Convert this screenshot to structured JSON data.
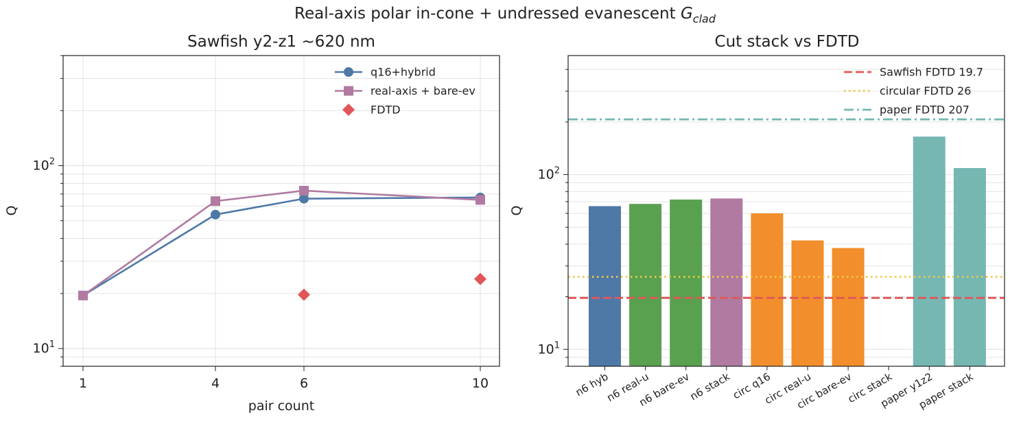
{
  "suptitle": {
    "main": "Real-axis polar in-cone + undressed evanescent ",
    "sym": "G",
    "sub": "clad"
  },
  "chart_data": [
    {
      "type": "line",
      "title": "Sawfish y2-z1 ~620 nm",
      "xlabel": "pair count",
      "ylabel": "Q",
      "yscale": "log",
      "ylim": [
        8,
        400
      ],
      "xlim": [
        0.0,
        10.7
      ],
      "xscale": "pair-count (1, 4, 6, 10 tick positions)",
      "xticks": [
        "1",
        "4",
        "6",
        "10"
      ],
      "yticks": [
        {
          "base": "10",
          "exp": "1"
        },
        {
          "base": "10",
          "exp": "2"
        }
      ],
      "grid": true,
      "legend_position": "top-right",
      "series": [
        {
          "name": "q16+hybrid",
          "color": "#4e79a7",
          "marker": "circle",
          "line": true,
          "points": [
            [
              1,
              19.5
            ],
            [
              4,
              54
            ],
            [
              6,
              66
            ],
            [
              10,
              67
            ]
          ]
        },
        {
          "name": "real-axis + bare-ev",
          "color": "#b07aa1",
          "marker": "square",
          "line": true,
          "points": [
            [
              1,
              19.5
            ],
            [
              4,
              64
            ],
            [
              6,
              73
            ],
            [
              10,
              65
            ]
          ]
        },
        {
          "name": "FDTD",
          "color": "#e15759",
          "marker": "diamond",
          "line": false,
          "points": [
            [
              6,
              19.7
            ],
            [
              10,
              24
            ]
          ]
        }
      ]
    },
    {
      "type": "bar",
      "title": "Cut stack vs FDTD",
      "ylabel": "Q",
      "yscale": "log",
      "ylim": [
        8,
        480
      ],
      "yticks": [
        {
          "base": "10",
          "exp": "1"
        },
        {
          "base": "10",
          "exp": "2"
        }
      ],
      "grid": true,
      "legend_position": "top-right",
      "categories": [
        "n6 hyb",
        "n6 real-u",
        "n6 bare-ev",
        "n6 stack",
        "circ q16",
        "circ real-u",
        "circ bare-ev",
        "circ stack",
        "paper y1z2",
        "paper stack"
      ],
      "values": [
        66,
        68,
        72,
        73,
        60,
        42,
        38,
        null,
        165,
        109
      ],
      "bar_colors": [
        "#4e79a7",
        "#59a14f",
        "#59a14f",
        "#b07aa1",
        "#f28e2b",
        "#f28e2b",
        "#f28e2b",
        "#f28e2b",
        "#76b7b2",
        "#76b7b2"
      ],
      "reference_lines": [
        {
          "name": "Sawfish FDTD 19.7",
          "value": 19.7,
          "color": "#e15759",
          "style": "dashed"
        },
        {
          "name": "circular FDTD 26",
          "value": 26,
          "color": "#edc948",
          "style": "dotted"
        },
        {
          "name": "paper FDTD 207",
          "value": 207,
          "color": "#76b7b2",
          "style": "dashdot"
        }
      ]
    }
  ]
}
